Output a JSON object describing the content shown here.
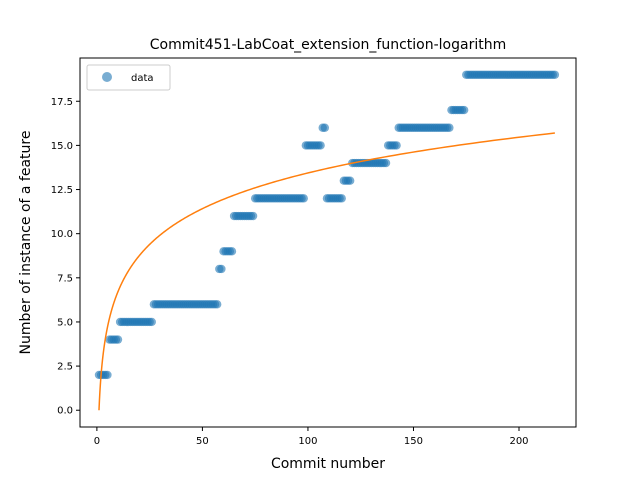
{
  "chart_data": {
    "type": "scatter",
    "title": "Commit451-LabCoat_extension_function-logarithm",
    "xlabel": "Commit number",
    "ylabel": "Number of instance of a feature",
    "xlim": [
      -8,
      227
    ],
    "ylim": [
      -0.95,
      19.95
    ],
    "xticks": [
      "0",
      "50",
      "100",
      "150",
      "200"
    ],
    "xtick_values": [
      0,
      50,
      100,
      150,
      200
    ],
    "yticks": [
      "0.0",
      "2.5",
      "5.0",
      "7.5",
      "10.0",
      "12.5",
      "15.0",
      "17.5"
    ],
    "ytick_values": [
      0,
      2.5,
      5,
      7.5,
      10,
      12.5,
      15,
      17.5
    ],
    "grid": false,
    "legend": {
      "position": "top-left",
      "entries": [
        "data"
      ]
    },
    "series": [
      {
        "name": "data",
        "kind": "scatter",
        "color": "#1f77b4",
        "segments": [
          {
            "x_start": 1,
            "x_end": 5,
            "y": 2
          },
          {
            "x_start": 6,
            "x_end": 10,
            "y": 4
          },
          {
            "x_start": 11,
            "x_end": 26,
            "y": 5
          },
          {
            "x_start": 27,
            "x_end": 57,
            "y": 6
          },
          {
            "x_start": 58,
            "x_end": 59,
            "y": 8
          },
          {
            "x_start": 60,
            "x_end": 64,
            "y": 9
          },
          {
            "x_start": 65,
            "x_end": 74,
            "y": 11
          },
          {
            "x_start": 75,
            "x_end": 98,
            "y": 12
          },
          {
            "x_start": 99,
            "x_end": 106,
            "y": 15
          },
          {
            "x_start": 107,
            "x_end": 108,
            "y": 16
          },
          {
            "x_start": 109,
            "x_end": 116,
            "y": 12
          },
          {
            "x_start": 117,
            "x_end": 120,
            "y": 13
          },
          {
            "x_start": 121,
            "x_end": 137,
            "y": 14
          },
          {
            "x_start": 138,
            "x_end": 142,
            "y": 15
          },
          {
            "x_start": 143,
            "x_end": 167,
            "y": 16
          },
          {
            "x_start": 168,
            "x_end": 174,
            "y": 17
          },
          {
            "x_start": 175,
            "x_end": 217,
            "y": 19
          }
        ]
      },
      {
        "kind": "fit-line",
        "color": "#ff7f0e",
        "function": "logarithmic",
        "x_range": [
          1,
          217
        ],
        "points": [
          [
            1,
            0
          ],
          [
            217,
            15.7
          ]
        ]
      }
    ]
  }
}
